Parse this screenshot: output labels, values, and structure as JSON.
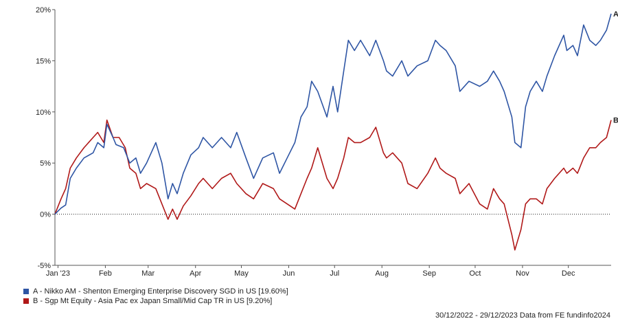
{
  "chart_data": {
    "type": "line",
    "title": "",
    "xlabel": "",
    "ylabel": "",
    "y_unit": "%",
    "ylim": [
      -5,
      20
    ],
    "y_ticks": [
      -5,
      0,
      5,
      10,
      15,
      20
    ],
    "y_tick_labels": [
      "-5%",
      "0%",
      "5%",
      "10%",
      "15%",
      "20%"
    ],
    "x_range": [
      "2022-12-30",
      "2023-12-29"
    ],
    "x_ticks": [
      {
        "date": "2023-01-01",
        "label": "Jan '23"
      },
      {
        "date": "2023-02-01",
        "label": "Feb"
      },
      {
        "date": "2023-03-01",
        "label": "Mar"
      },
      {
        "date": "2023-04-01",
        "label": "Apr"
      },
      {
        "date": "2023-05-01",
        "label": "May"
      },
      {
        "date": "2023-06-01",
        "label": "Jun"
      },
      {
        "date": "2023-07-01",
        "label": "Jul"
      },
      {
        "date": "2023-08-01",
        "label": "Aug"
      },
      {
        "date": "2023-09-01",
        "label": "Sep"
      },
      {
        "date": "2023-10-01",
        "label": "Oct"
      },
      {
        "date": "2023-11-01",
        "label": "Nov"
      },
      {
        "date": "2023-12-01",
        "label": "Dec"
      }
    ],
    "zero_line": "dotted",
    "grid": false,
    "legend_position": "bottom-left",
    "series": [
      {
        "name": "A - Nikko AM - Shenton Emerging Enterprise Discovery SGD in US [19.60%]",
        "end_label": "A",
        "color": "#2e55a4",
        "points": [
          [
            "2022-12-30",
            0.0
          ],
          [
            "2023-01-03",
            0.6
          ],
          [
            "2023-01-06",
            0.9
          ],
          [
            "2023-01-09",
            3.5
          ],
          [
            "2023-01-13",
            4.5
          ],
          [
            "2023-01-18",
            5.5
          ],
          [
            "2023-01-24",
            6.0
          ],
          [
            "2023-01-27",
            7.0
          ],
          [
            "2023-01-31",
            6.5
          ],
          [
            "2023-02-02",
            8.8
          ],
          [
            "2023-02-06",
            7.5
          ],
          [
            "2023-02-08",
            6.8
          ],
          [
            "2023-02-13",
            6.5
          ],
          [
            "2023-02-17",
            5.0
          ],
          [
            "2023-02-21",
            5.5
          ],
          [
            "2023-02-24",
            4.0
          ],
          [
            "2023-02-28",
            5.0
          ],
          [
            "2023-03-06",
            7.0
          ],
          [
            "2023-03-10",
            5.0
          ],
          [
            "2023-03-14",
            1.5
          ],
          [
            "2023-03-17",
            3.0
          ],
          [
            "2023-03-20",
            2.0
          ],
          [
            "2023-03-24",
            4.0
          ],
          [
            "2023-03-29",
            5.8
          ],
          [
            "2023-04-03",
            6.5
          ],
          [
            "2023-04-06",
            7.5
          ],
          [
            "2023-04-12",
            6.5
          ],
          [
            "2023-04-18",
            7.5
          ],
          [
            "2023-04-24",
            6.5
          ],
          [
            "2023-04-28",
            8.0
          ],
          [
            "2023-05-04",
            5.5
          ],
          [
            "2023-05-09",
            3.5
          ],
          [
            "2023-05-15",
            5.5
          ],
          [
            "2023-05-22",
            6.0
          ],
          [
            "2023-05-26",
            4.0
          ],
          [
            "2023-05-31",
            5.5
          ],
          [
            "2023-06-05",
            7.0
          ],
          [
            "2023-06-09",
            9.5
          ],
          [
            "2023-06-13",
            10.5
          ],
          [
            "2023-06-16",
            13.0
          ],
          [
            "2023-06-20",
            12.0
          ],
          [
            "2023-06-26",
            9.5
          ],
          [
            "2023-06-30",
            12.5
          ],
          [
            "2023-07-03",
            10.0
          ],
          [
            "2023-07-07",
            14.0
          ],
          [
            "2023-07-10",
            17.0
          ],
          [
            "2023-07-14",
            16.0
          ],
          [
            "2023-07-18",
            17.0
          ],
          [
            "2023-07-24",
            15.5
          ],
          [
            "2023-07-28",
            17.0
          ],
          [
            "2023-08-02",
            15.0
          ],
          [
            "2023-08-04",
            14.0
          ],
          [
            "2023-08-08",
            13.5
          ],
          [
            "2023-08-14",
            15.0
          ],
          [
            "2023-08-18",
            13.5
          ],
          [
            "2023-08-24",
            14.5
          ],
          [
            "2023-08-31",
            15.0
          ],
          [
            "2023-09-05",
            17.0
          ],
          [
            "2023-09-08",
            16.5
          ],
          [
            "2023-09-12",
            16.0
          ],
          [
            "2023-09-18",
            14.5
          ],
          [
            "2023-09-21",
            12.0
          ],
          [
            "2023-09-27",
            13.0
          ],
          [
            "2023-10-04",
            12.5
          ],
          [
            "2023-10-09",
            13.0
          ],
          [
            "2023-10-13",
            14.0
          ],
          [
            "2023-10-17",
            13.0
          ],
          [
            "2023-10-20",
            12.0
          ],
          [
            "2023-10-25",
            9.5
          ],
          [
            "2023-10-27",
            7.0
          ],
          [
            "2023-10-31",
            6.5
          ],
          [
            "2023-11-03",
            10.5
          ],
          [
            "2023-11-06",
            12.0
          ],
          [
            "2023-11-10",
            13.0
          ],
          [
            "2023-11-14",
            12.0
          ],
          [
            "2023-11-17",
            13.5
          ],
          [
            "2023-11-22",
            15.5
          ],
          [
            "2023-11-28",
            17.5
          ],
          [
            "2023-11-30",
            16.0
          ],
          [
            "2023-12-04",
            16.5
          ],
          [
            "2023-12-07",
            15.5
          ],
          [
            "2023-12-11",
            18.5
          ],
          [
            "2023-12-15",
            17.0
          ],
          [
            "2023-12-19",
            16.5
          ],
          [
            "2023-12-22",
            17.0
          ],
          [
            "2023-12-26",
            18.0
          ],
          [
            "2023-12-29",
            19.6
          ]
        ]
      },
      {
        "name": "B - Sgp Mt Equity - Asia Pac ex Japan Small/Mid Cap TR in US [9.20%]",
        "end_label": "B",
        "color": "#b01818",
        "points": [
          [
            "2022-12-30",
            0.0
          ],
          [
            "2023-01-03",
            1.5
          ],
          [
            "2023-01-06",
            2.5
          ],
          [
            "2023-01-09",
            4.5
          ],
          [
            "2023-01-13",
            5.5
          ],
          [
            "2023-01-18",
            6.5
          ],
          [
            "2023-01-24",
            7.5
          ],
          [
            "2023-01-27",
            8.0
          ],
          [
            "2023-01-31",
            7.0
          ],
          [
            "2023-02-02",
            9.2
          ],
          [
            "2023-02-06",
            7.5
          ],
          [
            "2023-02-10",
            7.5
          ],
          [
            "2023-02-14",
            6.5
          ],
          [
            "2023-02-17",
            4.5
          ],
          [
            "2023-02-21",
            4.0
          ],
          [
            "2023-02-24",
            2.5
          ],
          [
            "2023-02-28",
            3.0
          ],
          [
            "2023-03-06",
            2.5
          ],
          [
            "2023-03-10",
            1.0
          ],
          [
            "2023-03-14",
            -0.5
          ],
          [
            "2023-03-17",
            0.5
          ],
          [
            "2023-03-20",
            -0.5
          ],
          [
            "2023-03-24",
            0.8
          ],
          [
            "2023-03-29",
            1.8
          ],
          [
            "2023-04-03",
            3.0
          ],
          [
            "2023-04-06",
            3.5
          ],
          [
            "2023-04-12",
            2.5
          ],
          [
            "2023-04-18",
            3.5
          ],
          [
            "2023-04-24",
            4.0
          ],
          [
            "2023-04-28",
            3.0
          ],
          [
            "2023-05-04",
            2.0
          ],
          [
            "2023-05-09",
            1.5
          ],
          [
            "2023-05-15",
            3.0
          ],
          [
            "2023-05-22",
            2.5
          ],
          [
            "2023-05-26",
            1.5
          ],
          [
            "2023-05-31",
            1.0
          ],
          [
            "2023-06-05",
            0.5
          ],
          [
            "2023-06-09",
            2.0
          ],
          [
            "2023-06-13",
            3.5
          ],
          [
            "2023-06-16",
            4.5
          ],
          [
            "2023-06-20",
            6.5
          ],
          [
            "2023-06-26",
            3.5
          ],
          [
            "2023-06-30",
            2.5
          ],
          [
            "2023-07-03",
            3.5
          ],
          [
            "2023-07-07",
            5.5
          ],
          [
            "2023-07-10",
            7.5
          ],
          [
            "2023-07-14",
            7.0
          ],
          [
            "2023-07-18",
            7.0
          ],
          [
            "2023-07-24",
            7.5
          ],
          [
            "2023-07-28",
            8.5
          ],
          [
            "2023-08-02",
            6.0
          ],
          [
            "2023-08-04",
            5.5
          ],
          [
            "2023-08-08",
            6.0
          ],
          [
            "2023-08-14",
            5.0
          ],
          [
            "2023-08-18",
            3.0
          ],
          [
            "2023-08-24",
            2.5
          ],
          [
            "2023-08-31",
            4.0
          ],
          [
            "2023-09-05",
            5.5
          ],
          [
            "2023-09-08",
            4.5
          ],
          [
            "2023-09-12",
            4.0
          ],
          [
            "2023-09-18",
            3.5
          ],
          [
            "2023-09-21",
            2.0
          ],
          [
            "2023-09-27",
            3.0
          ],
          [
            "2023-10-04",
            1.0
          ],
          [
            "2023-10-09",
            0.5
          ],
          [
            "2023-10-13",
            2.5
          ],
          [
            "2023-10-17",
            1.5
          ],
          [
            "2023-10-20",
            1.0
          ],
          [
            "2023-10-25",
            -2.0
          ],
          [
            "2023-10-27",
            -3.5
          ],
          [
            "2023-10-31",
            -1.5
          ],
          [
            "2023-11-03",
            1.0
          ],
          [
            "2023-11-06",
            1.5
          ],
          [
            "2023-11-10",
            1.5
          ],
          [
            "2023-11-14",
            1.0
          ],
          [
            "2023-11-17",
            2.5
          ],
          [
            "2023-11-22",
            3.5
          ],
          [
            "2023-11-28",
            4.5
          ],
          [
            "2023-11-30",
            4.0
          ],
          [
            "2023-12-04",
            4.5
          ],
          [
            "2023-12-07",
            4.0
          ],
          [
            "2023-12-11",
            5.5
          ],
          [
            "2023-12-15",
            6.5
          ],
          [
            "2023-12-19",
            6.5
          ],
          [
            "2023-12-22",
            7.0
          ],
          [
            "2023-12-26",
            7.5
          ],
          [
            "2023-12-29",
            9.2
          ]
        ]
      }
    ]
  },
  "footer": {
    "source_text": "30/12/2022 - 29/12/2023 Data from FE fundinfo2024"
  }
}
